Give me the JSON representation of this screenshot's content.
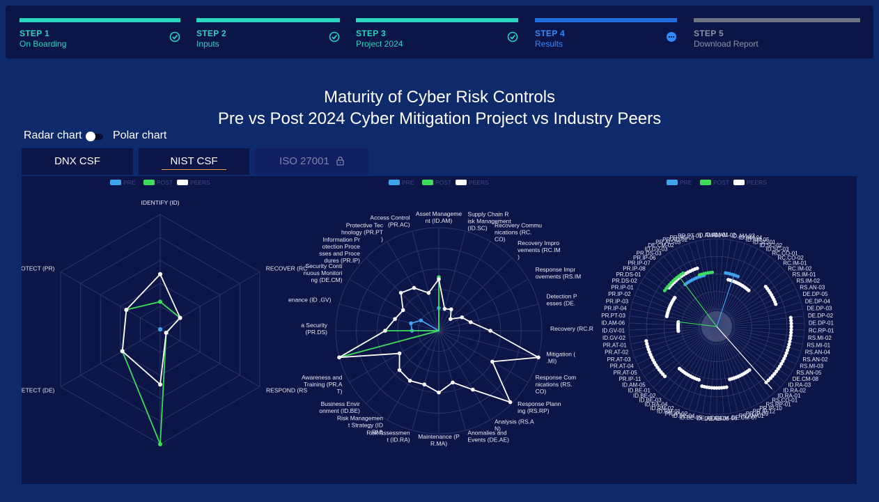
{
  "steps": [
    {
      "num": "STEP 1",
      "label": "On Boarding",
      "state": "done",
      "icon": "check-circle-icon"
    },
    {
      "num": "STEP 2",
      "label": "Inputs",
      "state": "done",
      "icon": "check-circle-icon"
    },
    {
      "num": "STEP 3",
      "label": "Project 2024",
      "state": "done",
      "icon": "check-circle-icon"
    },
    {
      "num": "STEP 4",
      "label": "Results",
      "state": "active",
      "icon": "more-dots-icon"
    },
    {
      "num": "STEP 5",
      "label": "Download Report",
      "state": "pending",
      "icon": ""
    }
  ],
  "colors": {
    "done": "#2ad4c0",
    "active": "#1f6fe0",
    "pending": "#6b7280",
    "pre": "#3fa3f0",
    "post": "#3ddc5a",
    "peers": "#ffffff"
  },
  "title": {
    "line1": "Maturity of Cyber Risk Controls",
    "line2": "Pre vs Post 2024 Cyber Mitigation Project vs Industry Peers"
  },
  "toggle": {
    "left": "Radar chart",
    "right": "Polar chart"
  },
  "tabs": [
    {
      "label": "DNX CSF",
      "active": false
    },
    {
      "label": "NIST CSF",
      "active": true
    },
    {
      "label": "ISO 27001",
      "active": false,
      "locked": true,
      "icon": "lock-icon"
    }
  ],
  "legend": [
    "PRE",
    "POST",
    "PEERS"
  ],
  "chart_data": [
    {
      "type": "radar",
      "axes": [
        "IDENTIFY (ID)",
        "RECOVER (RC",
        "RESPOND (RS",
        "",
        "DETECT (DE)",
        "PROTECT (PR)"
      ],
      "max": 5,
      "series": [
        {
          "name": "PRE",
          "values": [
            0,
            0,
            0,
            0,
            0,
            0
          ]
        },
        {
          "name": "POST",
          "values": [
            1.2,
            1.0,
            0.3,
            5.0,
            1.9,
            1.7
          ]
        },
        {
          "name": "PEERS",
          "values": [
            2.4,
            1.0,
            0.3,
            2.4,
            1.9,
            1.7
          ]
        }
      ]
    },
    {
      "type": "radar",
      "axes": [
        "Asset Manageme nt (ID.AM)",
        "Supply Chain R isk Management (ID.SC)",
        "Recovery Commu nications (RC. CO)",
        "Recovery Impro vements (RC.IM )",
        "Response Impr ovements (RS.IM",
        "Detection P esses (DE.",
        "Recovery (RC.R",
        "Mitigation ( .MI)",
        "Response Com nications (RS. CO)",
        "Response Plann ing (RS.RP)",
        "Analysis (RS.A N)",
        "Anomalies and Events (DE.AE)",
        "Maintenance (P R.MA)",
        "Risk Assessmen t (ID.RA)",
        "Risk Managemen t Strategy (ID .RM)",
        "Business Envir onment (ID.BE)",
        "Awareness and Training (PR.A T)",
        "",
        "a Security (PR.DS)",
        "enance (ID .GV)",
        "Security Conti nuous Monitori ng (DE.CM)",
        "Information Pr otection Proce sses and Proce dures (PR.IP)",
        "Protective Tec hnology (PR.PT )",
        "Access Control (PR.AC)"
      ],
      "max": 5,
      "series": [
        {
          "name": "PRE",
          "values": [
            1.1,
            0,
            0,
            0,
            0,
            0,
            0,
            0,
            0,
            0,
            0,
            0,
            0,
            0,
            0,
            0,
            0,
            0,
            1.3,
            1.4,
            1.0,
            0,
            0,
            0
          ]
        },
        {
          "name": "POST",
          "values": [
            2.6,
            0,
            0,
            0,
            0,
            0,
            0,
            0,
            0,
            0,
            0,
            0,
            0,
            0,
            0,
            0,
            0,
            5.0,
            2.6,
            0,
            0,
            0,
            0,
            0
          ]
        },
        {
          "name": "PEERS",
          "values": [
            2.5,
            1.1,
            1.2,
            0.8,
            1.3,
            1.6,
            2.5,
            5.0,
            3.0,
            4.9,
            3.3,
            2.6,
            3.0,
            2.7,
            2.8,
            2.7,
            2.2,
            5.0,
            2.6,
            2.2,
            2.0,
            2.6,
            2.4,
            1.9
          ]
        }
      ]
    },
    {
      "type": "polar",
      "axes": [
        "ID.AM-01",
        "ID.AM-02",
        "ID.AM-03",
        "ID.AM-04",
        "ID.AM-05",
        "ID.SC-01",
        "ID.SC-02",
        "ID.SC-03",
        "RC.CO-01",
        "RC.CO-02",
        "RC.IM-01",
        "RC.IM-02",
        "RS.IM-01",
        "RS.IM-02",
        "RS.AN-03",
        "DE.DP-05",
        "DE.DP-04",
        "DE.DP-03",
        "DE.DP-02",
        "DE.DP-01",
        "RC.RP-01",
        "RS.MI-02",
        "RS.MI-01",
        "RS.AN-04",
        "RS.AN-02",
        "RS.MI-03",
        "RS.AN-05",
        "DE.CM-08",
        "ID.RA-03",
        "ID.RA-02",
        "ID.RA-01",
        "RS.CO-01",
        "RS.RP-01",
        "PR.IP-10",
        "PR.IP-12",
        "PR.IP-09",
        "RS.AN-01",
        "DE.CM-07",
        "DE.CM-06",
        "DE.AE-05",
        "DE.AE-04",
        "ID.BE-05",
        "ID.BE-04",
        "PR.IP-02",
        "ID.RM-01",
        "ID.RM-02",
        "ID.RA-04",
        "ID.BE-03",
        "ID.BE-02",
        "ID.BE-01",
        "ID.AM-05",
        "PR.IP-11",
        "PR.AT-05",
        "PR.AT-04",
        "PR.AT-03",
        "PR.AT-02",
        "PR.AT-01",
        "ID.GV-02",
        "ID.GV-01",
        "ID.AM-06",
        "PR.PT-03",
        "PR.IP-04",
        "PR.IP-03",
        "PR.IP-02",
        "PR.IP-01",
        "PR.DS-02",
        "PR.DS-01",
        "PR.IP-08",
        "PR.IP-07",
        "PR.IP-06",
        "PR.DS-03",
        "ID.GV-03",
        "DE.CM-02",
        "PR.AC-03",
        "PR.AC-02",
        "PR.AC-01",
        "PR.PT-01",
        "ID.AM-01"
      ],
      "max": 5
    }
  ]
}
